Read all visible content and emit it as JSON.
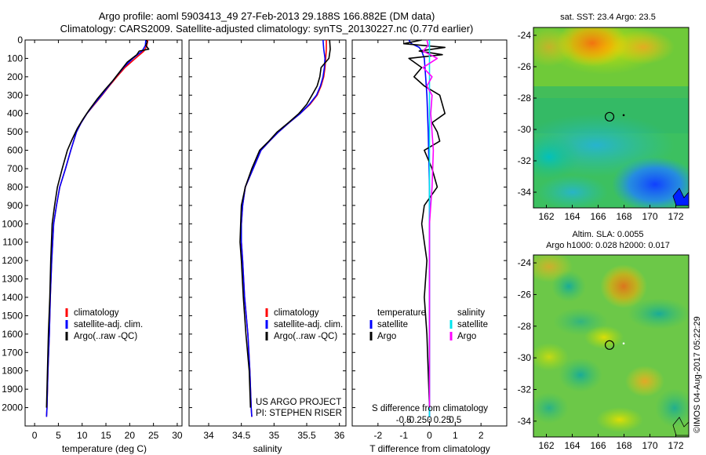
{
  "header": {
    "line1": "Argo profile: aoml 5903413_49 27-Feb-2013 29.188S 166.882E (DM data)",
    "line2": "Climatology: CARS2009. Satellite-adjusted climatology: synTS_20130227.nc (0.77d earlier)"
  },
  "colors": {
    "climatology": "#ff0000",
    "satellite": "#0000ff",
    "argo": "#000000",
    "sal_satellite": "#00e5ee",
    "sal_argo": "#ff00ff"
  },
  "chart_data": [
    {
      "type": "line",
      "name": "temperature",
      "xlabel": "temperature (deg C)",
      "ylabel": "",
      "xlim": [
        -2,
        31
      ],
      "ylim": [
        0,
        2100
      ],
      "y_reversed": true,
      "xticks": [
        0,
        5,
        10,
        15,
        20,
        25,
        30
      ],
      "yticks": [
        0,
        100,
        200,
        300,
        400,
        500,
        600,
        700,
        800,
        900,
        1000,
        1100,
        1200,
        1300,
        1400,
        1500,
        1600,
        1700,
        1800,
        1900,
        2000
      ],
      "legend": [
        "climatology",
        "satellite-adj. clim.",
        "Argo(..raw -QC)"
      ],
      "series": [
        {
          "name": "climatology",
          "color": "#ff0000",
          "x": [
            23.8,
            23.6,
            23.0,
            21.2,
            19.0,
            17.3,
            15.7,
            14.2,
            12.6,
            11.0,
            9.8,
            8.8,
            7.6,
            6.5,
            5.3,
            4.6,
            4.0,
            3.6,
            3.3,
            3.1,
            2.8,
            2.6,
            2.5
          ],
          "y": [
            0,
            30,
            60,
            100,
            150,
            200,
            250,
            300,
            350,
            400,
            450,
            500,
            600,
            700,
            800,
            900,
            1000,
            1200,
            1400,
            1600,
            1800,
            2000,
            2050
          ]
        },
        {
          "name": "satellite-adj. clim.",
          "color": "#0000ff",
          "x": [
            23.4,
            23.3,
            22.6,
            20.7,
            18.7,
            17.1,
            15.6,
            14.1,
            12.5,
            11.0,
            9.8,
            8.8,
            7.6,
            6.5,
            5.3,
            4.6,
            4.0,
            3.6,
            3.3,
            3.1,
            2.8,
            2.6,
            2.5
          ],
          "y": [
            0,
            30,
            60,
            100,
            150,
            200,
            250,
            300,
            350,
            400,
            450,
            500,
            600,
            700,
            800,
            900,
            1000,
            1200,
            1400,
            1600,
            1800,
            2000,
            2050
          ]
        },
        {
          "name": "Argo(..raw -QC)",
          "color": "#000000",
          "x": [
            23.5,
            23.7,
            23.4,
            24.0,
            22.0,
            21.5,
            19.5,
            18.0,
            16.5,
            14.8,
            13.2,
            11.5,
            10.2,
            9.0,
            7.9,
            6.9,
            5.8,
            4.8,
            4.2,
            3.7,
            3.4,
            3.2,
            2.9,
            2.7,
            2.5
          ],
          "y": [
            0,
            10,
            30,
            50,
            60,
            80,
            120,
            170,
            220,
            270,
            320,
            380,
            430,
            480,
            540,
            600,
            700,
            800,
            900,
            1000,
            1200,
            1400,
            1600,
            1800,
            2000
          ]
        }
      ]
    },
    {
      "type": "line",
      "name": "salinity",
      "xlabel": "salinity",
      "xlim": [
        33.7,
        36.1
      ],
      "ylim": [
        0,
        2100
      ],
      "y_reversed": true,
      "xticks": [
        34,
        34.5,
        35,
        35.5,
        36
      ],
      "legend": [
        "climatology",
        "satellite-adj. clim.",
        "Argo(..raw -QC)"
      ],
      "series": [
        {
          "name": "climatology",
          "color": "#ff0000",
          "x": [
            35.8,
            35.8,
            35.79,
            35.78,
            35.76,
            35.72,
            35.66,
            35.55,
            35.4,
            35.23,
            35.07,
            34.93,
            34.8,
            34.68,
            34.56,
            34.52,
            34.5,
            34.5,
            34.52,
            34.55,
            34.6,
            34.63,
            34.65,
            34.66
          ],
          "y": [
            0,
            50,
            100,
            150,
            200,
            250,
            300,
            350,
            400,
            450,
            500,
            550,
            600,
            700,
            800,
            900,
            1000,
            1100,
            1200,
            1400,
            1600,
            1800,
            2000,
            2050
          ]
        },
        {
          "name": "satellite-adj. clim.",
          "color": "#0000ff",
          "x": [
            35.75,
            35.76,
            35.78,
            35.77,
            35.75,
            35.71,
            35.65,
            35.54,
            35.4,
            35.23,
            35.07,
            34.93,
            34.8,
            34.68,
            34.56,
            34.52,
            34.5,
            34.5,
            34.52,
            34.55,
            34.6,
            34.63,
            34.65,
            34.66
          ],
          "y": [
            0,
            50,
            100,
            150,
            200,
            250,
            300,
            350,
            400,
            450,
            500,
            550,
            600,
            700,
            800,
            900,
            1000,
            1100,
            1200,
            1400,
            1600,
            1800,
            2000,
            2050
          ]
        },
        {
          "name": "Argo(..raw -QC)",
          "color": "#000000",
          "x": [
            35.85,
            35.86,
            35.84,
            35.72,
            35.7,
            35.66,
            35.58,
            35.5,
            35.38,
            35.22,
            35.05,
            34.92,
            34.78,
            34.66,
            34.56,
            34.5,
            34.49,
            34.48,
            34.5,
            34.53,
            34.57,
            34.62,
            34.64
          ],
          "y": [
            0,
            50,
            100,
            150,
            200,
            250,
            300,
            350,
            400,
            450,
            500,
            550,
            600,
            700,
            800,
            900,
            1000,
            1100,
            1200,
            1400,
            1600,
            1800,
            2000
          ]
        }
      ],
      "annotations": [
        "US ARGO PROJECT",
        "PI: STEPHEN RISER"
      ]
    },
    {
      "type": "line",
      "name": "differences",
      "xlabel": "T difference from climatology",
      "xlabel_top": "S difference from climatology",
      "xlim": [
        -3,
        3
      ],
      "ylim": [
        0,
        2100
      ],
      "y_reversed": true,
      "xticks": [
        -2,
        -1,
        0,
        1,
        2
      ],
      "xticklabels": [
        "-2",
        "-1",
        "0",
        "1",
        "2"
      ],
      "sticks": [
        -0.5,
        -0.25,
        0,
        0.25,
        0.5
      ],
      "sticklabels": [
        "-0.5",
        "-0.25",
        "0",
        "0.25",
        "0.5"
      ],
      "legend_temperature": [
        "temperature",
        "satellite",
        "Argo"
      ],
      "legend_salinity": [
        "salinity",
        "satellite",
        "Argo"
      ],
      "series": [
        {
          "name": "T satellite",
          "color": "#0000ff",
          "x": [
            -0.8,
            -0.7,
            -0.4,
            -0.3,
            -0.2,
            -0.15,
            -0.1,
            -0.05,
            0,
            0,
            0
          ],
          "y": [
            0,
            20,
            40,
            60,
            100,
            200,
            300,
            500,
            800,
            1400,
            2050
          ]
        },
        {
          "name": "T Argo",
          "color": "#000000",
          "x": [
            -0.3,
            -1.0,
            0.6,
            -0.4,
            0.5,
            -0.8,
            -0.3,
            -0.6,
            -0.2,
            0.4,
            0.6,
            0.1,
            0.3,
            0.4,
            -0.2,
            0.1,
            0.3,
            -0.2,
            -0.3,
            -0.1,
            -0.2,
            -0.1,
            0
          ],
          "y": [
            0,
            20,
            40,
            60,
            80,
            100,
            150,
            200,
            250,
            300,
            400,
            450,
            500,
            550,
            600,
            700,
            800,
            900,
            1000,
            1200,
            1400,
            1600,
            2000
          ]
        },
        {
          "name": "S satellite",
          "color": "#00e5ee",
          "x": [
            0,
            0,
            0,
            0,
            0,
            0,
            0,
            0,
            0,
            0,
            0
          ],
          "y": [
            0,
            100,
            200,
            400,
            600,
            800,
            1000,
            1200,
            1500,
            1800,
            2050
          ]
        },
        {
          "name": "S Argo",
          "color": "#ff00ff",
          "x": [
            -0.1,
            -0.05,
            -0.25,
            0.3,
            -0.25,
            0.1,
            -0.1,
            0.1,
            0.05,
            0.15,
            0.1,
            0.05,
            0,
            0,
            0,
            0
          ],
          "y": [
            0,
            30,
            60,
            100,
            150,
            200,
            250,
            300,
            400,
            600,
            800,
            900,
            1000,
            1400,
            1800,
            2000
          ]
        }
      ]
    },
    {
      "type": "heatmap",
      "name": "sst-map",
      "title": "sat. SST: 23.4  Argo: 23.5",
      "xlim": [
        161,
        173
      ],
      "ylim": [
        -35,
        -23.5
      ],
      "xticks": [
        162,
        164,
        166,
        168,
        170,
        172
      ],
      "yticks": [
        -24,
        -26,
        -28,
        -30,
        -32,
        -34
      ],
      "marker": {
        "lon": 166.88,
        "lat": -29.19
      }
    },
    {
      "type": "heatmap",
      "name": "sla-map",
      "title": "Altim. SLA: 0.0055",
      "subtitle": "Argo h1000: 0.028 h2000: 0.017",
      "xlim": [
        161,
        173
      ],
      "ylim": [
        -35,
        -23.5
      ],
      "xticks": [
        162,
        164,
        166,
        168,
        170,
        172
      ],
      "yticks": [
        -24,
        -26,
        -28,
        -30,
        -32,
        -34
      ],
      "marker": {
        "lon": 166.88,
        "lat": -29.19
      }
    }
  ],
  "footer": {
    "imos_stamp": "©IMOS 04-Aug-2017 05:22:29"
  }
}
